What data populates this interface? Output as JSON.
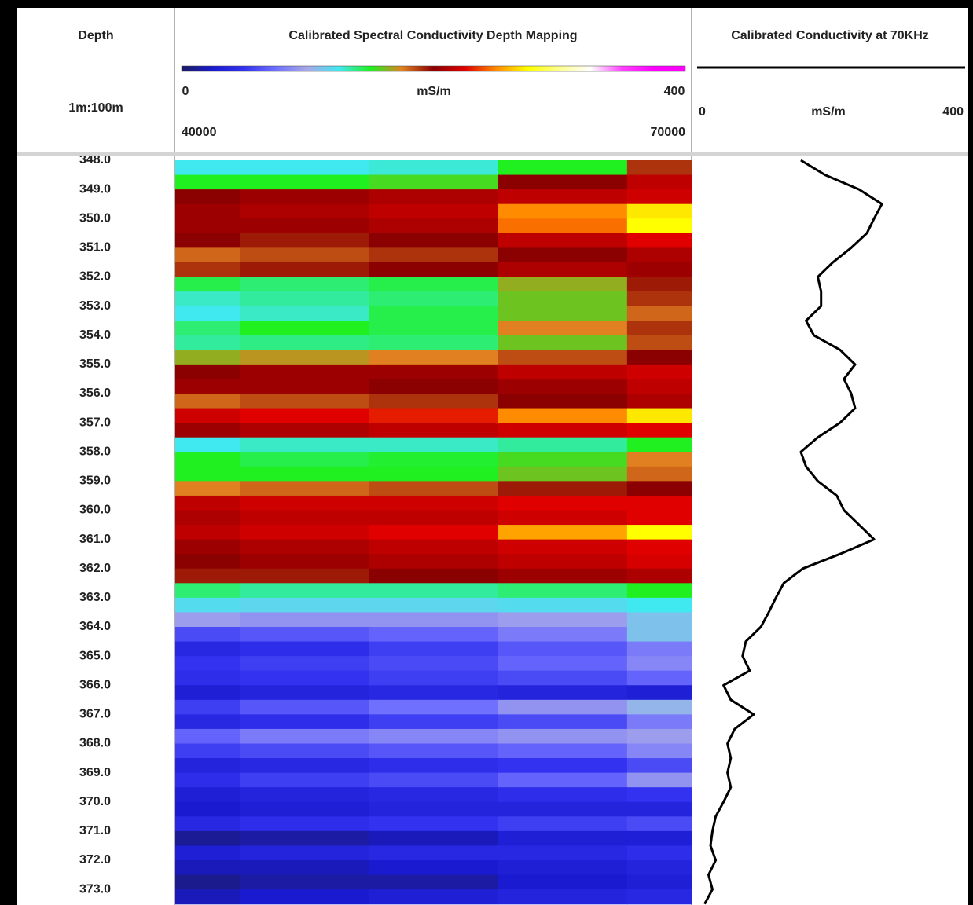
{
  "chart_data": [
    {
      "type": "depth_track",
      "title": "Depth",
      "scale": "1m:100m",
      "ylim": [
        348,
        373.5
      ],
      "yticks": [
        {
          "value": 348,
          "label": "348.0"
        },
        {
          "value": 349,
          "label": "349.0"
        },
        {
          "value": 350,
          "label": "350.0"
        },
        {
          "value": 351,
          "label": "351.0"
        },
        {
          "value": 352,
          "label": "352.0"
        },
        {
          "value": 353,
          "label": "353.0"
        },
        {
          "value": 354,
          "label": "354.0"
        },
        {
          "value": 355,
          "label": "355.0"
        },
        {
          "value": 356,
          "label": "356.0"
        },
        {
          "value": 357,
          "label": "357.0"
        },
        {
          "value": 358,
          "label": "358.0"
        },
        {
          "value": 359,
          "label": "359.0"
        },
        {
          "value": 360,
          "label": "360.0"
        },
        {
          "value": 361,
          "label": "361.0"
        },
        {
          "value": 362,
          "label": "362.0"
        },
        {
          "value": 363,
          "label": "363.0"
        },
        {
          "value": 364,
          "label": "364.0"
        },
        {
          "value": 365,
          "label": "365.0"
        },
        {
          "value": 366,
          "label": "366.0"
        },
        {
          "value": 367,
          "label": "367.0"
        },
        {
          "value": 368,
          "label": "368.0"
        },
        {
          "value": 369,
          "label": "369.0"
        },
        {
          "value": 370,
          "label": "370.0"
        },
        {
          "value": 371,
          "label": "371.0"
        },
        {
          "value": 372,
          "label": "372.0"
        },
        {
          "value": 373,
          "label": "373.0"
        }
      ]
    },
    {
      "type": "heatmap",
      "title": "Calibrated Spectral Conductivity Depth Mapping",
      "color_label": "mS/m",
      "colorlim": [
        0,
        400
      ],
      "colorticks": [
        0,
        400
      ],
      "colorscale": [
        "#1c1c60",
        "#1a1ad0",
        "#3232f0",
        "#7070ff",
        "#a8a8e8",
        "#40e8f0",
        "#20f020",
        "#e08020",
        "#8b0000",
        "#e00000",
        "#ff8c00",
        "#ffff00",
        "#ffff90",
        "#ffffff",
        "#ff40ff",
        "#ff00ff",
        "#ff00ff"
      ],
      "xlim": [
        40000,
        70000
      ],
      "xticks": [
        40000,
        70000
      ],
      "ylim": [
        348,
        373.5
      ],
      "x": [
        40000,
        47500,
        55000,
        62500,
        70000
      ],
      "y": [
        348,
        348.5,
        349,
        349.5,
        350,
        350.5,
        351,
        351.5,
        352,
        352.5,
        353,
        353.5,
        354,
        354.5,
        355,
        355.5,
        356,
        356.5,
        357,
        357.5,
        358,
        358.5,
        359,
        359.5,
        360,
        360.5,
        361,
        361.5,
        362,
        362.5,
        363,
        363.5,
        364,
        364.5,
        365,
        365.5,
        366,
        366.5,
        367,
        367.5,
        368,
        368.5,
        369,
        369.5,
        370,
        370.5,
        371,
        371.5,
        372,
        372.5,
        373
      ],
      "z": [
        [
          125,
          125,
          128,
          150,
          190
        ],
        [
          150,
          150,
          155,
          200,
          215
        ],
        [
          200,
          205,
          210,
          215,
          220
        ],
        [
          205,
          210,
          215,
          250,
          270
        ],
        [
          205,
          205,
          210,
          245,
          275
        ],
        [
          200,
          195,
          200,
          215,
          225
        ],
        [
          180,
          185,
          190,
          200,
          210
        ],
        [
          190,
          195,
          200,
          210,
          205
        ],
        [
          145,
          140,
          145,
          165,
          195
        ],
        [
          130,
          135,
          140,
          160,
          190
        ],
        [
          125,
          130,
          145,
          160,
          180
        ],
        [
          140,
          150,
          145,
          175,
          190
        ],
        [
          135,
          138,
          140,
          160,
          185
        ],
        [
          165,
          170,
          175,
          185,
          200
        ],
        [
          200,
          205,
          205,
          215,
          220
        ],
        [
          205,
          205,
          200,
          205,
          215
        ],
        [
          180,
          185,
          190,
          200,
          210
        ],
        [
          220,
          225,
          230,
          250,
          270
        ],
        [
          205,
          210,
          215,
          220,
          225
        ],
        [
          125,
          130,
          130,
          135,
          150
        ],
        [
          150,
          145,
          148,
          155,
          175
        ],
        [
          150,
          150,
          150,
          160,
          180
        ],
        [
          175,
          180,
          185,
          195,
          200
        ],
        [
          215,
          220,
          220,
          225,
          225
        ],
        [
          210,
          215,
          215,
          220,
          225
        ],
        [
          215,
          220,
          225,
          255,
          275
        ],
        [
          205,
          210,
          215,
          220,
          225
        ],
        [
          200,
          205,
          210,
          215,
          222
        ],
        [
          195,
          195,
          200,
          205,
          210
        ],
        [
          140,
          135,
          135,
          140,
          150
        ],
        [
          120,
          118,
          118,
          120,
          125
        ],
        [
          95,
          90,
          90,
          95,
          110
        ],
        [
          60,
          65,
          70,
          80,
          110
        ],
        [
          40,
          45,
          55,
          65,
          80
        ],
        [
          50,
          55,
          60,
          70,
          85
        ],
        [
          45,
          50,
          55,
          60,
          70
        ],
        [
          30,
          35,
          40,
          35,
          30
        ],
        [
          55,
          65,
          75,
          90,
          105
        ],
        [
          40,
          45,
          55,
          60,
          80
        ],
        [
          70,
          80,
          85,
          90,
          95
        ],
        [
          55,
          60,
          65,
          70,
          85
        ],
        [
          35,
          40,
          45,
          50,
          60
        ],
        [
          45,
          55,
          60,
          70,
          90
        ],
        [
          30,
          35,
          40,
          45,
          50
        ],
        [
          25,
          30,
          35,
          35,
          35
        ],
        [
          40,
          45,
          50,
          55,
          60
        ],
        [
          12,
          15,
          20,
          30,
          30
        ],
        [
          30,
          35,
          40,
          40,
          45
        ],
        [
          20,
          20,
          25,
          30,
          35
        ],
        [
          10,
          15,
          15,
          25,
          30
        ],
        [
          20,
          25,
          30,
          35,
          40
        ]
      ]
    },
    {
      "type": "line",
      "title": "Calibrated Conductivity at 70KHz",
      "xlabel": "mS/m",
      "xlim": [
        0,
        400
      ],
      "xticks": [
        0,
        400
      ],
      "ylim": [
        348,
        373.5
      ],
      "color": "#000000",
      "y": [
        348,
        348.5,
        349,
        349.5,
        350,
        350.5,
        351,
        351.5,
        352,
        352.5,
        353,
        353.5,
        354,
        354.5,
        355,
        355.5,
        356,
        356.5,
        357,
        357.5,
        358,
        358.5,
        359,
        359.5,
        360,
        360.5,
        361,
        361.5,
        362,
        362.5,
        363,
        363.5,
        364,
        364.5,
        365,
        365.5,
        366,
        366.5,
        367,
        367.5,
        368,
        368.5,
        369,
        369.5,
        370,
        370.5,
        371,
        371.5,
        372,
        372.5,
        373,
        373.5
      ],
      "values": [
        156,
        193,
        245,
        280,
        268,
        257,
        233,
        205,
        182,
        187,
        187,
        164,
        176,
        216,
        239,
        222,
        233,
        239,
        216,
        182,
        156,
        164,
        182,
        211,
        222,
        245,
        268,
        216,
        159,
        130,
        118,
        107,
        95,
        72,
        67,
        78,
        38,
        49,
        84,
        55,
        44,
        49,
        44,
        49,
        38,
        26,
        21,
        18,
        26,
        15,
        21,
        9
      ]
    }
  ]
}
